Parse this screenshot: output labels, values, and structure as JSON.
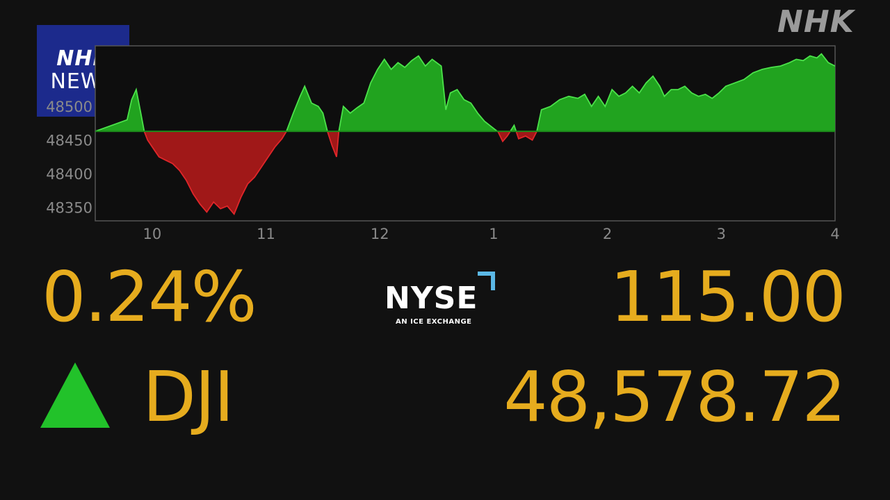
{
  "broadcaster": {
    "corner_logo": "NHK",
    "badge_line1": "NHK",
    "badge_line2": "NEWS",
    "badge_color": "#1c2a8c"
  },
  "exchange": {
    "name": "NYSE",
    "tagline": "AN ICE EXCHANGE",
    "accent_color": "#5bb8e6"
  },
  "ticker": {
    "percent_change": "0.24%",
    "direction": "up",
    "index_name": "DJI",
    "point_change": "115.00",
    "index_value": "48,578.72",
    "text_color": "#e6ac1e",
    "up_color": "#22c22a"
  },
  "chart_data": {
    "type": "area",
    "baseline": 48463,
    "ylim": [
      48330,
      48590
    ],
    "yticks": [
      48350,
      48400,
      48450,
      48500
    ],
    "xticks": [
      {
        "x": 10,
        "label": "10"
      },
      {
        "x": 11,
        "label": "11"
      },
      {
        "x": 12,
        "label": "12"
      },
      {
        "x": 13,
        "label": "1"
      },
      {
        "x": 14,
        "label": "2"
      },
      {
        "x": 15,
        "label": "3"
      },
      {
        "x": 16,
        "label": "4"
      }
    ],
    "xlim": [
      9.5,
      16
    ],
    "above_color": "#21a31f",
    "below_color": "#a01818",
    "series": [
      {
        "points": [
          [
            9.5,
            48463
          ],
          [
            9.78,
            48480
          ],
          [
            9.82,
            48510
          ],
          [
            9.86,
            48525
          ],
          [
            9.9,
            48490
          ],
          [
            9.93,
            48463
          ],
          [
            9.96,
            48450
          ],
          [
            10.0,
            48440
          ],
          [
            10.06,
            48425
          ],
          [
            10.12,
            48420
          ],
          [
            10.18,
            48415
          ],
          [
            10.24,
            48405
          ],
          [
            10.3,
            48390
          ],
          [
            10.36,
            48370
          ],
          [
            10.42,
            48355
          ],
          [
            10.48,
            48343
          ],
          [
            10.54,
            48358
          ],
          [
            10.6,
            48348
          ],
          [
            10.66,
            48352
          ],
          [
            10.72,
            48340
          ],
          [
            10.78,
            48365
          ],
          [
            10.84,
            48385
          ],
          [
            10.9,
            48395
          ],
          [
            10.96,
            48410
          ],
          [
            11.02,
            48425
          ],
          [
            11.08,
            48440
          ],
          [
            11.14,
            48452
          ],
          [
            11.18,
            48463
          ],
          [
            11.24,
            48490
          ],
          [
            11.3,
            48515
          ],
          [
            11.34,
            48530
          ],
          [
            11.4,
            48505
          ],
          [
            11.46,
            48500
          ],
          [
            11.5,
            48490
          ],
          [
            11.54,
            48463
          ],
          [
            11.58,
            48442
          ],
          [
            11.62,
            48425
          ],
          [
            11.64,
            48463
          ],
          [
            11.68,
            48500
          ],
          [
            11.74,
            48490
          ],
          [
            11.8,
            48498
          ],
          [
            11.86,
            48505
          ],
          [
            11.92,
            48535
          ],
          [
            11.98,
            48555
          ],
          [
            12.04,
            48570
          ],
          [
            12.1,
            48555
          ],
          [
            12.16,
            48565
          ],
          [
            12.22,
            48558
          ],
          [
            12.28,
            48568
          ],
          [
            12.34,
            48575
          ],
          [
            12.4,
            48560
          ],
          [
            12.46,
            48570
          ],
          [
            12.54,
            48560
          ],
          [
            12.58,
            48495
          ],
          [
            12.62,
            48520
          ],
          [
            12.68,
            48525
          ],
          [
            12.74,
            48510
          ],
          [
            12.8,
            48505
          ],
          [
            12.86,
            48490
          ],
          [
            12.92,
            48478
          ],
          [
            12.98,
            48470
          ],
          [
            13.04,
            48462
          ],
          [
            13.08,
            48448
          ],
          [
            13.12,
            48456
          ],
          [
            13.18,
            48472
          ],
          [
            13.22,
            48452
          ],
          [
            13.28,
            48456
          ],
          [
            13.34,
            48450
          ],
          [
            13.38,
            48463
          ],
          [
            13.42,
            48495
          ],
          [
            13.5,
            48500
          ],
          [
            13.58,
            48510
          ],
          [
            13.66,
            48515
          ],
          [
            13.74,
            48512
          ],
          [
            13.8,
            48518
          ],
          [
            13.86,
            48500
          ],
          [
            13.92,
            48515
          ],
          [
            13.98,
            48500
          ],
          [
            14.04,
            48525
          ],
          [
            14.1,
            48515
          ],
          [
            14.16,
            48520
          ],
          [
            14.22,
            48530
          ],
          [
            14.28,
            48520
          ],
          [
            14.34,
            48535
          ],
          [
            14.4,
            48545
          ],
          [
            14.46,
            48530
          ],
          [
            14.5,
            48515
          ],
          [
            14.56,
            48525
          ],
          [
            14.62,
            48525
          ],
          [
            14.68,
            48530
          ],
          [
            14.74,
            48520
          ],
          [
            14.8,
            48515
          ],
          [
            14.86,
            48518
          ],
          [
            14.92,
            48512
          ],
          [
            14.98,
            48520
          ],
          [
            15.04,
            48530
          ],
          [
            15.12,
            48535
          ],
          [
            15.2,
            48540
          ],
          [
            15.28,
            48550
          ],
          [
            15.36,
            48555
          ],
          [
            15.44,
            48558
          ],
          [
            15.52,
            48560
          ],
          [
            15.6,
            48565
          ],
          [
            15.66,
            48570
          ],
          [
            15.72,
            48568
          ],
          [
            15.78,
            48575
          ],
          [
            15.84,
            48572
          ],
          [
            15.88,
            48578
          ],
          [
            15.94,
            48565
          ],
          [
            16.0,
            48560
          ]
        ]
      }
    ]
  }
}
